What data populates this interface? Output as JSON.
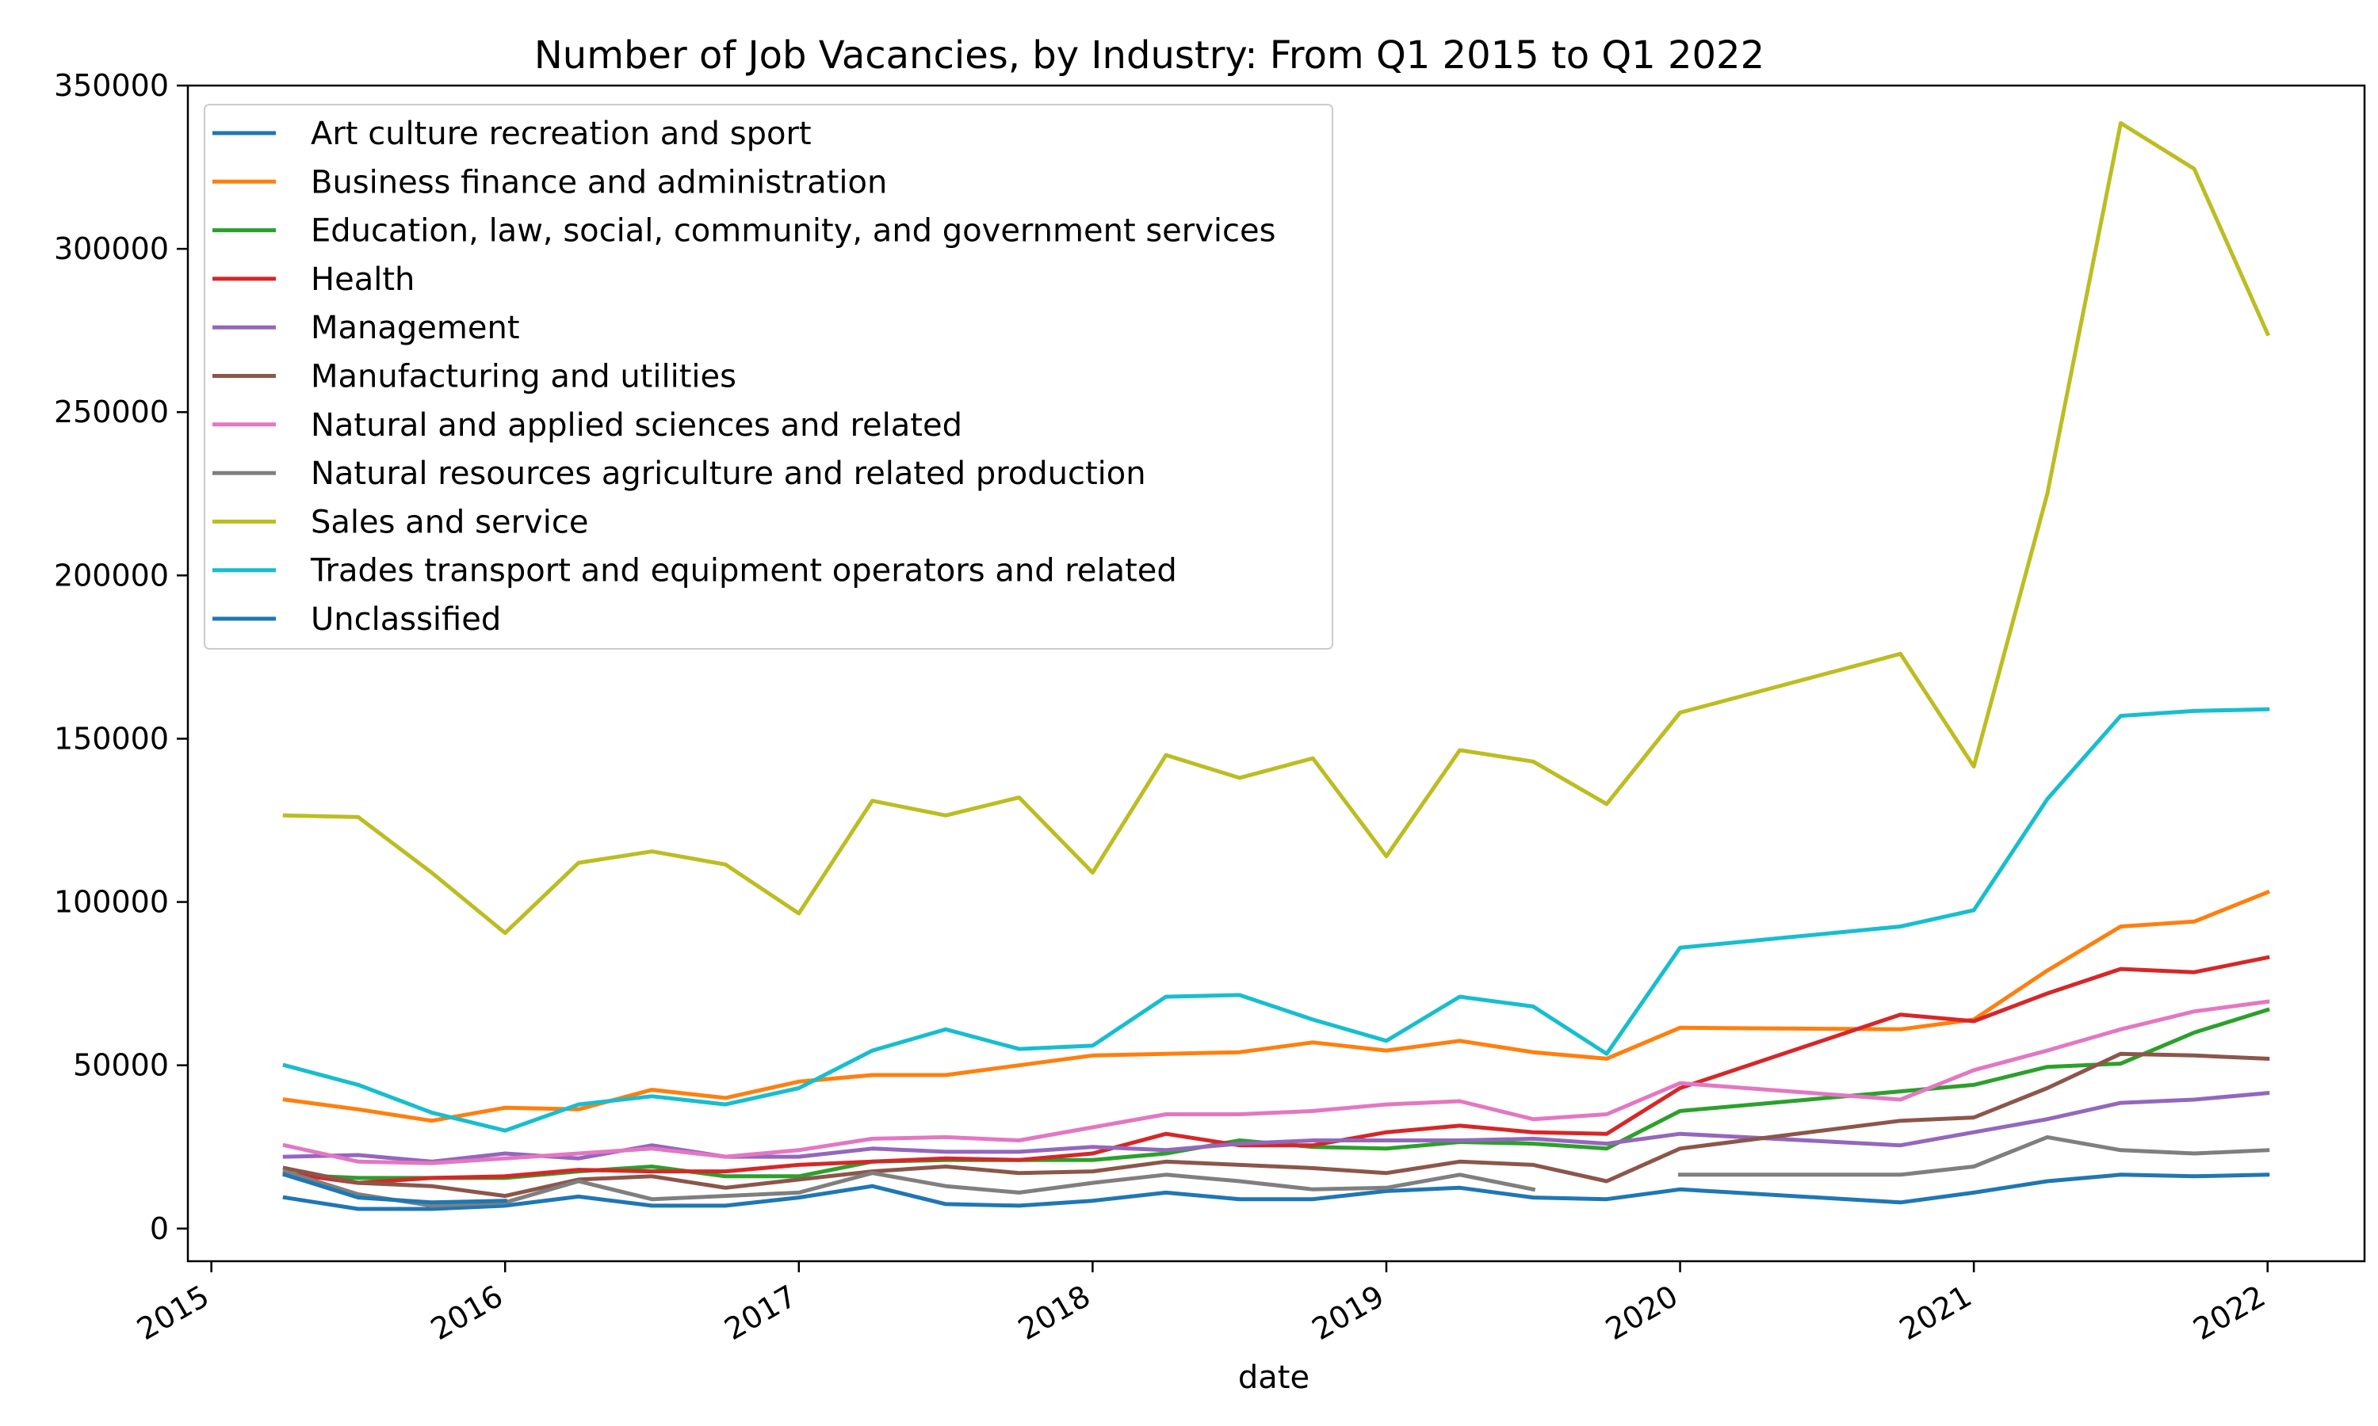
{
  "chart_data": {
    "type": "line",
    "title": "Number of Job Vacancies, by Industry: From Q1 2015 to Q1 2022",
    "xlabel": "date",
    "ylabel": "",
    "xlim": [
      2014.92,
      2022.33
    ],
    "ylim": [
      -10000,
      350000
    ],
    "x_ticks": [
      {
        "value": 2015,
        "label": "2015"
      },
      {
        "value": 2016,
        "label": "2016"
      },
      {
        "value": 2017,
        "label": "2017"
      },
      {
        "value": 2018,
        "label": "2018"
      },
      {
        "value": 2019,
        "label": "2019"
      },
      {
        "value": 2020,
        "label": "2020"
      },
      {
        "value": 2021,
        "label": "2021"
      },
      {
        "value": 2022,
        "label": "2022"
      }
    ],
    "y_ticks": [
      {
        "value": 0,
        "label": "0"
      },
      {
        "value": 50000,
        "label": "50000"
      },
      {
        "value": 100000,
        "label": "100000"
      },
      {
        "value": 150000,
        "label": "150000"
      },
      {
        "value": 200000,
        "label": "200000"
      },
      {
        "value": 250000,
        "label": "250000"
      },
      {
        "value": 300000,
        "label": "300000"
      },
      {
        "value": 350000,
        "label": "350000"
      }
    ],
    "grid": false,
    "legend_position": "upper-left",
    "series": [
      {
        "name": "Art culture recreation and sport",
        "color": "#1f77b4",
        "points": [
          [
            2015.25,
            9500
          ],
          [
            2015.5,
            6000
          ],
          [
            2015.75,
            6000
          ],
          [
            2016.0,
            7000
          ],
          [
            2016.25,
            9800
          ],
          [
            2016.5,
            7000
          ],
          [
            2016.75,
            7000
          ],
          [
            2017.0,
            9500
          ],
          [
            2017.25,
            13000
          ],
          [
            2017.5,
            7500
          ],
          [
            2017.75,
            7000
          ],
          [
            2018.0,
            8500
          ],
          [
            2018.25,
            11000
          ],
          [
            2018.5,
            9000
          ],
          [
            2018.75,
            9000
          ],
          [
            2019.0,
            11500
          ],
          [
            2019.25,
            12500
          ],
          [
            2019.5,
            9500
          ],
          [
            2019.75,
            9000
          ],
          [
            2020.0,
            12000
          ],
          [
            2020.75,
            8000
          ],
          [
            2021.0,
            11000
          ],
          [
            2021.25,
            14500
          ],
          [
            2021.5,
            16500
          ],
          [
            2021.75,
            16000
          ],
          [
            2022.0,
            16500
          ]
        ]
      },
      {
        "name": "Business finance and administration",
        "color": "#ff7f0e",
        "points": [
          [
            2015.25,
            39500
          ],
          [
            2015.5,
            36500
          ],
          [
            2015.75,
            33000
          ],
          [
            2016.0,
            37000
          ],
          [
            2016.25,
            36500
          ],
          [
            2016.5,
            42500
          ],
          [
            2016.75,
            40000
          ],
          [
            2017.0,
            45000
          ],
          [
            2017.25,
            47000
          ],
          [
            2017.5,
            47000
          ],
          [
            2017.75,
            50000
          ],
          [
            2018.0,
            53000
          ],
          [
            2018.25,
            53500
          ],
          [
            2018.5,
            54000
          ],
          [
            2018.75,
            57000
          ],
          [
            2019.0,
            54500
          ],
          [
            2019.25,
            57500
          ],
          [
            2019.5,
            54000
          ],
          [
            2019.75,
            52000
          ],
          [
            2020.0,
            61500
          ],
          [
            2020.75,
            61000
          ],
          [
            2021.0,
            64000
          ],
          [
            2021.25,
            79000
          ],
          [
            2021.5,
            92500
          ],
          [
            2021.75,
            94000
          ],
          [
            2022.0,
            103000
          ]
        ]
      },
      {
        "name": "Education, law, social, community, and government services",
        "color": "#2ca02c",
        "points": [
          [
            2015.25,
            16500
          ],
          [
            2015.5,
            15500
          ],
          [
            2015.75,
            15500
          ],
          [
            2016.0,
            15500
          ],
          [
            2016.25,
            17500
          ],
          [
            2016.5,
            19000
          ],
          [
            2016.75,
            16000
          ],
          [
            2017.0,
            16000
          ],
          [
            2017.25,
            20500
          ],
          [
            2017.5,
            21000
          ],
          [
            2017.75,
            21000
          ],
          [
            2018.0,
            21000
          ],
          [
            2018.25,
            23000
          ],
          [
            2018.5,
            27000
          ],
          [
            2018.75,
            25000
          ],
          [
            2019.0,
            24500
          ],
          [
            2019.25,
            26500
          ],
          [
            2019.5,
            26000
          ],
          [
            2019.75,
            24500
          ],
          [
            2020.0,
            36000
          ],
          [
            2020.75,
            42000
          ],
          [
            2021.0,
            44000
          ],
          [
            2021.25,
            49500
          ],
          [
            2021.5,
            50500
          ],
          [
            2021.75,
            60000
          ],
          [
            2022.0,
            67000
          ]
        ]
      },
      {
        "name": "Health",
        "color": "#d62728",
        "points": [
          [
            2015.25,
            17000
          ],
          [
            2015.5,
            14000
          ],
          [
            2015.75,
            15500
          ],
          [
            2016.0,
            16000
          ],
          [
            2016.25,
            18000
          ],
          [
            2016.5,
            17500
          ],
          [
            2016.75,
            17500
          ],
          [
            2017.0,
            19500
          ],
          [
            2017.25,
            20500
          ],
          [
            2017.5,
            21500
          ],
          [
            2017.75,
            21000
          ],
          [
            2018.0,
            23000
          ],
          [
            2018.25,
            29000
          ],
          [
            2018.5,
            25500
          ],
          [
            2018.75,
            25500
          ],
          [
            2019.0,
            29500
          ],
          [
            2019.25,
            31500
          ],
          [
            2019.5,
            29500
          ],
          [
            2019.75,
            29000
          ],
          [
            2020.0,
            43000
          ],
          [
            2020.75,
            65500
          ],
          [
            2021.0,
            63500
          ],
          [
            2021.25,
            72000
          ],
          [
            2021.5,
            79500
          ],
          [
            2021.75,
            78500
          ],
          [
            2022.0,
            83000
          ]
        ]
      },
      {
        "name": "Management",
        "color": "#9467bd",
        "points": [
          [
            2015.25,
            22000
          ],
          [
            2015.5,
            22500
          ],
          [
            2015.75,
            20500
          ],
          [
            2016.0,
            23000
          ],
          [
            2016.25,
            21500
          ],
          [
            2016.5,
            25500
          ],
          [
            2016.75,
            22000
          ],
          [
            2017.0,
            22000
          ],
          [
            2017.25,
            24500
          ],
          [
            2017.5,
            23500
          ],
          [
            2017.75,
            23500
          ],
          [
            2018.0,
            25000
          ],
          [
            2018.25,
            24000
          ],
          [
            2018.5,
            26000
          ],
          [
            2018.75,
            27000
          ],
          [
            2019.0,
            27000
          ],
          [
            2019.25,
            27000
          ],
          [
            2019.5,
            27500
          ],
          [
            2019.75,
            26000
          ],
          [
            2020.0,
            29000
          ],
          [
            2020.75,
            25500
          ],
          [
            2021.0,
            29500
          ],
          [
            2021.25,
            33500
          ],
          [
            2021.5,
            38500
          ],
          [
            2021.75,
            39500
          ],
          [
            2022.0,
            41500
          ]
        ]
      },
      {
        "name": "Manufacturing and utilities",
        "color": "#8c564b",
        "points": [
          [
            2015.25,
            18500
          ],
          [
            2015.5,
            14000
          ],
          [
            2015.75,
            13000
          ],
          [
            2016.0,
            10000
          ],
          [
            2016.25,
            15000
          ],
          [
            2016.5,
            16000
          ],
          [
            2016.75,
            12500
          ],
          [
            2017.0,
            15000
          ],
          [
            2017.25,
            17500
          ],
          [
            2017.5,
            19000
          ],
          [
            2017.75,
            17000
          ],
          [
            2018.0,
            17500
          ],
          [
            2018.25,
            20500
          ],
          [
            2018.5,
            19500
          ],
          [
            2018.75,
            18500
          ],
          [
            2019.0,
            17000
          ],
          [
            2019.25,
            20500
          ],
          [
            2019.5,
            19500
          ],
          [
            2019.75,
            14500
          ],
          [
            2020.0,
            24500
          ],
          [
            2020.75,
            33000
          ],
          [
            2021.0,
            34000
          ],
          [
            2021.25,
            43000
          ],
          [
            2021.5,
            53500
          ],
          [
            2021.75,
            53000
          ],
          [
            2022.0,
            52000
          ]
        ]
      },
      {
        "name": "Natural and applied sciences and related",
        "color": "#e377c2",
        "points": [
          [
            2015.25,
            25500
          ],
          [
            2015.5,
            20500
          ],
          [
            2015.75,
            20000
          ],
          [
            2016.0,
            21500
          ],
          [
            2016.25,
            23000
          ],
          [
            2016.5,
            24500
          ],
          [
            2016.75,
            22000
          ],
          [
            2017.0,
            24000
          ],
          [
            2017.25,
            27500
          ],
          [
            2017.5,
            28000
          ],
          [
            2017.75,
            27000
          ],
          [
            2018.0,
            31000
          ],
          [
            2018.25,
            35000
          ],
          [
            2018.5,
            35000
          ],
          [
            2018.75,
            36000
          ],
          [
            2019.0,
            38000
          ],
          [
            2019.25,
            39000
          ],
          [
            2019.5,
            33500
          ],
          [
            2019.75,
            35000
          ],
          [
            2020.0,
            44500
          ],
          [
            2020.75,
            39500
          ],
          [
            2021.0,
            48500
          ],
          [
            2021.25,
            54500
          ],
          [
            2021.5,
            61000
          ],
          [
            2021.75,
            66500
          ],
          [
            2022.0,
            69500
          ]
        ]
      },
      {
        "name": "Natural resources agriculture and related production",
        "color": "#7f7f7f",
        "points": [
          [
            2015.25,
            17500
          ],
          [
            2015.5,
            10500
          ],
          [
            2015.75,
            7000
          ],
          [
            2016.0,
            8000
          ],
          [
            2016.25,
            14500
          ],
          [
            2016.5,
            9000
          ],
          [
            2016.75,
            10000
          ],
          [
            2017.0,
            11000
          ],
          [
            2017.25,
            17000
          ],
          [
            2017.5,
            13000
          ],
          [
            2017.75,
            11000
          ],
          [
            2018.0,
            14000
          ],
          [
            2018.25,
            16500
          ],
          [
            2018.5,
            14500
          ],
          [
            2018.75,
            12000
          ],
          [
            2019.0,
            12500
          ],
          [
            2019.25,
            16500
          ],
          [
            2019.5,
            12000
          ],
          null,
          [
            2020.0,
            16500
          ],
          [
            2020.75,
            16500
          ],
          [
            2021.0,
            19000
          ],
          [
            2021.25,
            28000
          ],
          [
            2021.5,
            24000
          ],
          [
            2021.75,
            23000
          ],
          [
            2022.0,
            24000
          ]
        ]
      },
      {
        "name": "Sales and service",
        "color": "#bcbd22",
        "points": [
          [
            2015.25,
            126500
          ],
          [
            2015.5,
            126000
          ],
          [
            2015.75,
            109000
          ],
          [
            2016.0,
            90500
          ],
          [
            2016.25,
            112000
          ],
          [
            2016.5,
            115500
          ],
          [
            2016.75,
            111500
          ],
          [
            2017.0,
            96500
          ],
          [
            2017.25,
            131000
          ],
          [
            2017.5,
            126500
          ],
          [
            2017.75,
            132000
          ],
          [
            2018.0,
            109000
          ],
          [
            2018.25,
            145000
          ],
          [
            2018.5,
            138000
          ],
          [
            2018.75,
            144000
          ],
          [
            2019.0,
            114000
          ],
          [
            2019.25,
            146500
          ],
          [
            2019.5,
            143000
          ],
          [
            2019.75,
            130000
          ],
          [
            2020.0,
            158000
          ],
          [
            2020.75,
            176000
          ],
          [
            2021.0,
            141500
          ],
          [
            2021.25,
            225000
          ],
          [
            2021.5,
            338500
          ],
          [
            2021.75,
            324500
          ],
          [
            2022.0,
            274000
          ]
        ]
      },
      {
        "name": "Trades transport and equipment operators and related",
        "color": "#17becf",
        "points": [
          [
            2015.25,
            50000
          ],
          [
            2015.5,
            44000
          ],
          [
            2015.75,
            35500
          ],
          [
            2016.0,
            30000
          ],
          [
            2016.25,
            38000
          ],
          [
            2016.5,
            40500
          ],
          [
            2016.75,
            38000
          ],
          [
            2017.0,
            43000
          ],
          [
            2017.25,
            54500
          ],
          [
            2017.5,
            61000
          ],
          [
            2017.75,
            55000
          ],
          [
            2018.0,
            56000
          ],
          [
            2018.25,
            71000
          ],
          [
            2018.5,
            71500
          ],
          [
            2018.75,
            64000
          ],
          [
            2019.0,
            57500
          ],
          [
            2019.25,
            71000
          ],
          [
            2019.5,
            68000
          ],
          [
            2019.75,
            53500
          ],
          [
            2020.0,
            86000
          ],
          [
            2020.75,
            92500
          ],
          [
            2021.0,
            97500
          ],
          [
            2021.25,
            131500
          ],
          [
            2021.5,
            157000
          ],
          [
            2021.75,
            158500
          ],
          [
            2022.0,
            159000
          ]
        ]
      },
      {
        "name": "Unclassified",
        "color": "#1f77b4",
        "points": [
          [
            2015.25,
            16500
          ],
          [
            2015.5,
            9500
          ],
          [
            2015.75,
            8000
          ],
          [
            2016.0,
            8500
          ]
        ]
      }
    ]
  }
}
